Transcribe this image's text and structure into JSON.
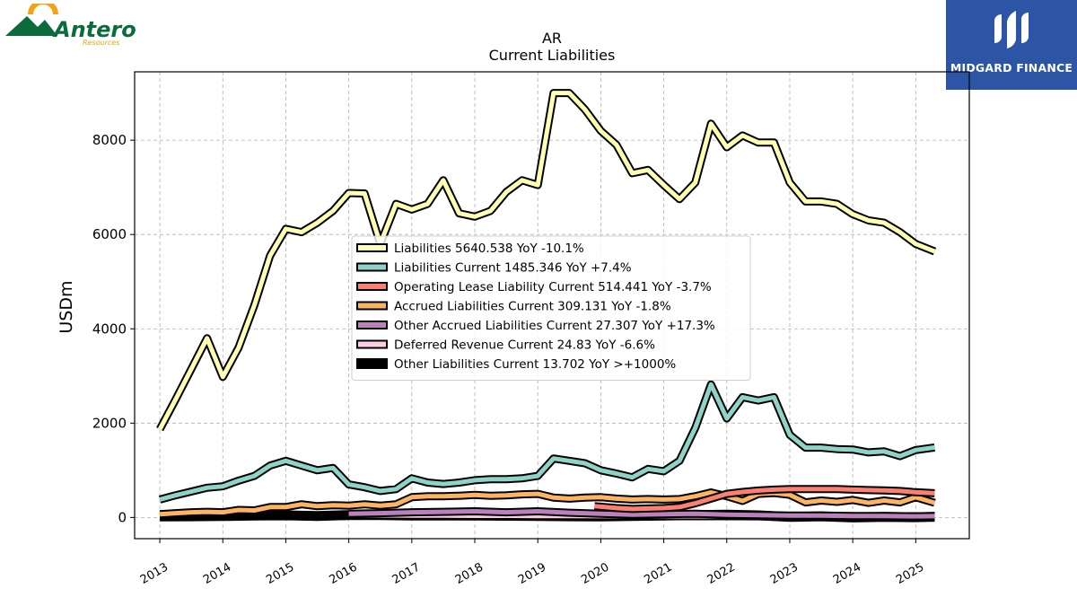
{
  "logos": {
    "left_brand": "Antero",
    "left_sub": "Resources",
    "right_brand": "MIDGARD FINANCE"
  },
  "colors": {
    "liabilities": "#ffffb3",
    "liabilities_current": "#8dd3c7",
    "operating_lease": "#fb8072",
    "accrued": "#fdb462",
    "other_accrued": "#bc80bd",
    "deferred_revenue": "#fccde5",
    "other_liabilities": "#000000",
    "right_logo_bg": "#2d55a6",
    "left_logo_green": "#0b6b3a",
    "left_logo_orange": "#f2a413"
  },
  "chart_data": {
    "type": "line",
    "title": "AR",
    "subtitle": "Current  Liabilities",
    "ylabel": "USDm",
    "xlabel": "",
    "xlim": [
      2012.6,
      2025.85
    ],
    "ylim": [
      -450,
      9450
    ],
    "yticks": [
      0,
      2000,
      4000,
      6000,
      8000
    ],
    "xticks": [
      2013,
      2014,
      2015,
      2016,
      2017,
      2018,
      2019,
      2020,
      2021,
      2022,
      2023,
      2024,
      2025
    ],
    "grid": true,
    "legend_position": "center",
    "series": [
      {
        "name": "Liabilities",
        "legend": "Liabilities  5640.538 YoY -10.1%",
        "color": "#ffffb3",
        "x": [
          2013.0,
          2013.25,
          2013.5,
          2013.75,
          2014.0,
          2014.25,
          2014.5,
          2014.75,
          2015.0,
          2015.25,
          2015.5,
          2015.75,
          2016.0,
          2016.25,
          2016.5,
          2016.75,
          2017.0,
          2017.25,
          2017.5,
          2017.75,
          2018.0,
          2018.25,
          2018.5,
          2018.75,
          2019.0,
          2019.25,
          2019.5,
          2019.75,
          2020.0,
          2020.25,
          2020.5,
          2020.75,
          2021.0,
          2021.25,
          2021.5,
          2021.75,
          2022.0,
          2022.25,
          2022.5,
          2022.75,
          2023.0,
          2023.25,
          2023.5,
          2023.75,
          2024.0,
          2024.25,
          2024.5,
          2024.75,
          2025.0,
          2025.3
        ],
        "values": [
          1870,
          2500,
          3150,
          3800,
          2980,
          3600,
          4500,
          5550,
          6120,
          6050,
          6250,
          6500,
          6880,
          6870,
          5800,
          6650,
          6530,
          6650,
          7150,
          6450,
          6380,
          6500,
          6900,
          7150,
          7050,
          9000,
          9000,
          8650,
          8200,
          7900,
          7300,
          7370,
          7050,
          6750,
          7100,
          8350,
          7850,
          8100,
          7950,
          7950,
          7100,
          6700,
          6700,
          6650,
          6430,
          6300,
          6250,
          6050,
          5800,
          5640
        ]
      },
      {
        "name": "Liabilities Current",
        "legend": "Liabilities Current  1485.346 YoY +7.4%",
        "color": "#8dd3c7",
        "x": [
          2013.0,
          2013.25,
          2013.5,
          2013.75,
          2014.0,
          2014.25,
          2014.5,
          2014.75,
          2015.0,
          2015.25,
          2015.5,
          2015.75,
          2016.0,
          2016.25,
          2016.5,
          2016.75,
          2017.0,
          2017.25,
          2017.5,
          2017.75,
          2018.0,
          2018.25,
          2018.5,
          2018.75,
          2019.0,
          2019.25,
          2019.5,
          2019.75,
          2020.0,
          2020.25,
          2020.5,
          2020.75,
          2021.0,
          2021.25,
          2021.5,
          2021.75,
          2022.0,
          2022.25,
          2022.5,
          2022.75,
          2023.0,
          2023.25,
          2023.5,
          2023.75,
          2024.0,
          2024.25,
          2024.5,
          2024.75,
          2025.0,
          2025.3
        ],
        "values": [
          380,
          470,
          550,
          630,
          660,
          780,
          880,
          1100,
          1200,
          1100,
          1000,
          1050,
          700,
          640,
          560,
          600,
          830,
          740,
          710,
          740,
          790,
          810,
          810,
          830,
          880,
          1250,
          1200,
          1150,
          1000,
          930,
          850,
          1030,
          980,
          1200,
          1900,
          2820,
          2100,
          2550,
          2480,
          2550,
          1750,
          1480,
          1480,
          1450,
          1440,
          1380,
          1400,
          1300,
          1430,
          1485
        ]
      },
      {
        "name": "Operating Lease Liability Current",
        "legend": "Operating Lease Liability Current  514.441 YoY -3.7%",
        "color": "#fb8072",
        "x": [
          2019.9,
          2020.25,
          2020.5,
          2020.75,
          2021.0,
          2021.25,
          2021.5,
          2021.75,
          2022.0,
          2022.25,
          2022.5,
          2022.75,
          2023.0,
          2023.25,
          2023.5,
          2023.75,
          2024.0,
          2024.25,
          2024.5,
          2024.75,
          2025.0,
          2025.3
        ],
        "values": [
          240,
          200,
          180,
          190,
          200,
          220,
          300,
          400,
          500,
          540,
          570,
          590,
          600,
          600,
          600,
          600,
          590,
          580,
          575,
          560,
          535,
          514
        ]
      },
      {
        "name": "Accrued Liabilities Current",
        "legend": "Accrued Liabilities Current  309.131 YoY -1.8%",
        "color": "#fdb462",
        "x": [
          2013.0,
          2013.25,
          2013.5,
          2013.75,
          2014.0,
          2014.25,
          2014.5,
          2014.75,
          2015.0,
          2015.25,
          2015.5,
          2015.75,
          2016.0,
          2016.25,
          2016.5,
          2016.75,
          2017.0,
          2017.25,
          2017.5,
          2017.75,
          2018.0,
          2018.25,
          2018.5,
          2018.75,
          2019.0,
          2019.25,
          2019.5,
          2019.75,
          2020.0,
          2020.25,
          2020.5,
          2020.75,
          2021.0,
          2021.25,
          2021.5,
          2021.75,
          2022.0,
          2022.25,
          2022.5,
          2022.75,
          2023.0,
          2023.25,
          2023.5,
          2023.75,
          2024.0,
          2024.25,
          2024.5,
          2024.75,
          2025.0,
          2025.3
        ],
        "values": [
          70,
          90,
          110,
          120,
          110,
          160,
          150,
          220,
          220,
          280,
          240,
          260,
          250,
          280,
          250,
          280,
          430,
          450,
          450,
          460,
          480,
          460,
          470,
          490,
          500,
          420,
          400,
          420,
          430,
          400,
          380,
          390,
          380,
          390,
          450,
          530,
          450,
          350,
          500,
          520,
          480,
          320,
          360,
          330,
          370,
          310,
          360,
          320,
          430,
          309
        ]
      },
      {
        "name": "Other Accrued Liabilities Current",
        "legend": "Other Accrued Liabilities Current  27.307 YoY +17.3%",
        "color": "#bc80bd",
        "x": [
          2016.0,
          2016.5,
          2017.0,
          2017.5,
          2018.0,
          2018.5,
          2019.0,
          2019.5,
          2020.0,
          2020.5,
          2021.0,
          2021.5,
          2022.0,
          2022.5,
          2023.0,
          2023.5,
          2024.0,
          2024.5,
          2025.0,
          2025.3
        ],
        "values": [
          80,
          90,
          110,
          120,
          130,
          110,
          130,
          100,
          80,
          60,
          70,
          80,
          60,
          50,
          40,
          40,
          30,
          30,
          25,
          27
        ]
      },
      {
        "name": "Deferred Revenue Current",
        "legend": "Deferred Revenue Current  24.83 YoY -6.6%",
        "color": "#fccde5",
        "x": [
          2016.0,
          2016.5,
          2017.0,
          2017.5,
          2018.0,
          2018.5,
          2019.0,
          2019.5,
          2020.0,
          2020.5,
          2021.0,
          2021.5,
          2022.0,
          2022.5,
          2023.0,
          2023.5,
          2024.0,
          2024.5,
          2025.0,
          2025.3
        ],
        "values": [
          50,
          45,
          40,
          40,
          35,
          35,
          30,
          30,
          28,
          27,
          26,
          26,
          26,
          25,
          25,
          25,
          25,
          25,
          25,
          25
        ]
      },
      {
        "name": "Other Liabilities Current",
        "legend": "Other Liabilities Current  13.702 YoY >+1000%",
        "color": "#000000",
        "x": [
          2013.0,
          2013.5,
          2014.0,
          2014.5,
          2015.0,
          2015.5,
          2016.0,
          2016.5,
          2017.0,
          2017.5,
          2018.0,
          2018.5,
          2019.0,
          2019.5,
          2020.0,
          2020.5,
          2021.0,
          2021.5,
          2022.0,
          2022.5,
          2023.0,
          2023.5,
          2024.0,
          2024.5,
          2025.0,
          2025.3
        ],
        "values": [
          20,
          25,
          30,
          40,
          45,
          30,
          50,
          50,
          40,
          40,
          40,
          35,
          30,
          25,
          20,
          30,
          40,
          50,
          60,
          45,
          10,
          25,
          0,
          10,
          5,
          14
        ]
      }
    ]
  }
}
